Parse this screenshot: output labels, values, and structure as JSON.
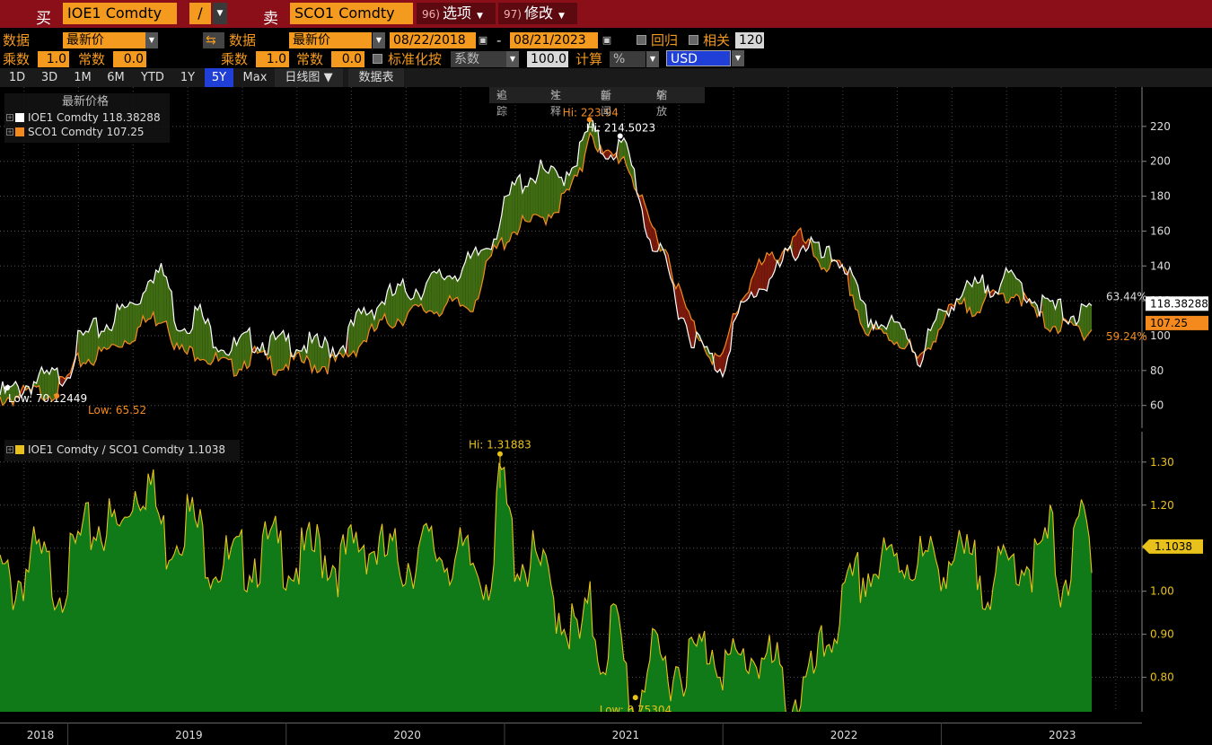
{
  "titlebar": {
    "buy_label": "买",
    "buy_ticker": "IOE1 Comdty",
    "operator": "/",
    "sell_label": "卖",
    "sell_ticker": "SCO1 Comdty",
    "options_num": "96)",
    "options_label": "选项",
    "edit_num": "97)",
    "edit_label": "修改"
  },
  "params": {
    "data_label": "数据",
    "data_value": "最新价",
    "data2_label": "数据",
    "data2_value": "最新价",
    "start_date": "08/22/2018",
    "date_sep": "-",
    "end_date": "08/21/2023",
    "regress_label": "回归",
    "corr_label": "相关",
    "corr_value": "120",
    "mult_label": "乘数",
    "mult_value": "1.0",
    "const_label": "常数",
    "const_value": "0.0",
    "mult2_label": "乘数",
    "mult2_value": "1.0",
    "const2_label": "常数",
    "const2_value": "0.0",
    "normalize_label": "标准化按",
    "normalize_value": "系数",
    "normalize_num": "100.0",
    "calc_label": "计算",
    "calc_value": "%",
    "currency": "USD"
  },
  "tabs": [
    "1D",
    "3D",
    "1M",
    "6M",
    "YTD",
    "1Y",
    "5Y",
    "Max"
  ],
  "active_tab": "5Y",
  "chart_type_label": "日线图",
  "table_label": "数据表",
  "chart_tools": {
    "track": "追踪",
    "annotate": "注释",
    "news": "新闻",
    "zoom": "缩放"
  },
  "colors": {
    "titlebar": "#8a0f19",
    "accent_orange": "#f49a1e",
    "active_tab": "#1f3fd6",
    "series1": "#ffffff",
    "series2": "#f48a1e",
    "fill_above": "#3f6b12",
    "fill_below": "#7a1a0c",
    "ratio_fill": "#0f7a17",
    "ratio_line": "#e8c21a"
  },
  "chart_data": [
    {
      "type": "line",
      "legend_title": "最新价格",
      "series": [
        {
          "name": "IOE1 Comdty",
          "last": "118.38288",
          "pct": "63.44%",
          "color": "#ffffff",
          "hi_label": "Hi: 214.5023",
          "low_label": "Low: 70.12449",
          "points": [
            [
              2018.64,
              70
            ],
            [
              2018.7,
              72
            ],
            [
              2018.8,
              78
            ],
            [
              2018.9,
              80
            ],
            [
              2018.95,
              84
            ],
            [
              2019.0,
              100
            ],
            [
              2019.05,
              105
            ],
            [
              2019.1,
              108
            ],
            [
              2019.2,
              118
            ],
            [
              2019.25,
              122
            ],
            [
              2019.3,
              130
            ],
            [
              2019.32,
              142
            ],
            [
              2019.4,
              138
            ],
            [
              2019.45,
              112
            ],
            [
              2019.5,
              112
            ],
            [
              2019.55,
              118
            ],
            [
              2019.6,
              106
            ],
            [
              2019.7,
              96
            ],
            [
              2019.8,
              102
            ],
            [
              2019.9,
              99
            ],
            [
              2020.0,
              100
            ],
            [
              2020.1,
              97
            ],
            [
              2020.2,
              98
            ],
            [
              2020.3,
              116
            ],
            [
              2020.4,
              125
            ],
            [
              2020.5,
              130
            ],
            [
              2020.6,
              133
            ],
            [
              2020.7,
              140
            ],
            [
              2020.8,
              145
            ],
            [
              2020.9,
              162
            ],
            [
              2021.0,
              190
            ],
            [
              2021.1,
              198
            ],
            [
              2021.2,
              193
            ],
            [
              2021.3,
              210
            ],
            [
              2021.34,
              224
            ],
            [
              2021.4,
              210
            ],
            [
              2021.5,
              212
            ],
            [
              2021.55,
              195
            ],
            [
              2021.6,
              165
            ],
            [
              2021.7,
              140
            ],
            [
              2021.75,
              120
            ],
            [
              2021.8,
              106
            ],
            [
              2021.9,
              90
            ],
            [
              2021.95,
              85
            ],
            [
              2022.0,
              110
            ],
            [
              2022.1,
              130
            ],
            [
              2022.2,
              140
            ],
            [
              2022.25,
              150
            ],
            [
              2022.3,
              155
            ],
            [
              2022.35,
              158
            ],
            [
              2022.4,
              148
            ],
            [
              2022.5,
              148
            ],
            [
              2022.55,
              132
            ],
            [
              2022.6,
              115
            ],
            [
              2022.7,
              110
            ],
            [
              2022.8,
              105
            ],
            [
              2022.85,
              90
            ],
            [
              2022.9,
              105
            ],
            [
              2023.0,
              125
            ],
            [
              2023.1,
              130
            ],
            [
              2023.2,
              135
            ],
            [
              2023.3,
              135
            ],
            [
              2023.4,
              122
            ],
            [
              2023.5,
              118
            ],
            [
              2023.6,
              115
            ],
            [
              2023.64,
              118.38
            ]
          ]
        },
        {
          "name": "SCO1 Comdty",
          "last": "107.25",
          "pct": "59.24%",
          "color": "#f48a1e",
          "hi_label": "Hi: 223.94",
          "low_label": "Low: 65.52",
          "points": [
            [
              2018.64,
              67
            ],
            [
              2018.7,
              68
            ],
            [
              2018.8,
              70
            ],
            [
              2018.9,
              72
            ],
            [
              2018.95,
              78
            ],
            [
              2019.0,
              88
            ],
            [
              2019.05,
              90
            ],
            [
              2019.1,
              92
            ],
            [
              2019.2,
              100
            ],
            [
              2019.25,
              104
            ],
            [
              2019.3,
              110
            ],
            [
              2019.32,
              112
            ],
            [
              2019.4,
              115
            ],
            [
              2019.45,
              95
            ],
            [
              2019.5,
              92
            ],
            [
              2019.55,
              95
            ],
            [
              2019.6,
              90
            ],
            [
              2019.7,
              84
            ],
            [
              2019.8,
              92
            ],
            [
              2019.9,
              86
            ],
            [
              2020.0,
              88
            ],
            [
              2020.1,
              86
            ],
            [
              2020.2,
              88
            ],
            [
              2020.3,
              100
            ],
            [
              2020.4,
              110
            ],
            [
              2020.5,
              115
            ],
            [
              2020.6,
              118
            ],
            [
              2020.7,
              120
            ],
            [
              2020.8,
              120
            ],
            [
              2020.9,
              150
            ],
            [
              2021.0,
              165
            ],
            [
              2021.1,
              168
            ],
            [
              2021.2,
              178
            ],
            [
              2021.3,
              195
            ],
            [
              2021.34,
              223.9
            ],
            [
              2021.4,
              205
            ],
            [
              2021.5,
              206
            ],
            [
              2021.55,
              190
            ],
            [
              2021.6,
              170
            ],
            [
              2021.7,
              150
            ],
            [
              2021.75,
              128
            ],
            [
              2021.8,
              112
            ],
            [
              2021.9,
              92
            ],
            [
              2021.95,
              88
            ],
            [
              2022.0,
              115
            ],
            [
              2022.1,
              140
            ],
            [
              2022.2,
              150
            ],
            [
              2022.25,
              155
            ],
            [
              2022.3,
              160
            ],
            [
              2022.35,
              152
            ],
            [
              2022.4,
              145
            ],
            [
              2022.5,
              140
            ],
            [
              2022.55,
              125
            ],
            [
              2022.6,
              105
            ],
            [
              2022.7,
              103
            ],
            [
              2022.8,
              98
            ],
            [
              2022.85,
              86
            ],
            [
              2022.9,
              100
            ],
            [
              2023.0,
              118
            ],
            [
              2023.1,
              120
            ],
            [
              2023.2,
              125
            ],
            [
              2023.3,
              128
            ],
            [
              2023.4,
              112
            ],
            [
              2023.5,
              108
            ],
            [
              2023.6,
              106
            ],
            [
              2023.64,
              107.25
            ]
          ]
        }
      ],
      "yticks": [
        60,
        80,
        100,
        120,
        140,
        160,
        180,
        200,
        220
      ],
      "ylim": [
        48,
        240
      ]
    },
    {
      "type": "area",
      "series": [
        {
          "name": "IOE1 Comdty / SCO1 Comdty",
          "last": "1.1038",
          "hi_label": "Hi: 1.31883",
          "low_label": "Low: 0.75304",
          "points": [
            [
              2018.64,
              1.08
            ],
            [
              2018.7,
              1.05
            ],
            [
              2018.8,
              1.12
            ],
            [
              2018.9,
              1.06
            ],
            [
              2018.95,
              1.08
            ],
            [
              2019.0,
              1.15
            ],
            [
              2019.1,
              1.2
            ],
            [
              2019.2,
              1.18
            ],
            [
              2019.25,
              1.28
            ],
            [
              2019.32,
              1.3
            ],
            [
              2019.4,
              1.15
            ],
            [
              2019.5,
              1.22
            ],
            [
              2019.55,
              1.18
            ],
            [
              2019.6,
              1.12
            ],
            [
              2019.7,
              1.1
            ],
            [
              2019.8,
              1.12
            ],
            [
              2019.9,
              1.14
            ],
            [
              2020.0,
              1.1
            ],
            [
              2020.1,
              1.14
            ],
            [
              2020.2,
              1.1
            ],
            [
              2020.3,
              1.16
            ],
            [
              2020.4,
              1.12
            ],
            [
              2020.5,
              1.11
            ],
            [
              2020.6,
              1.14
            ],
            [
              2020.7,
              1.12
            ],
            [
              2020.8,
              1.1
            ],
            [
              2020.9,
              1.08
            ],
            [
              2020.93,
              1.32
            ],
            [
              2021.0,
              1.12
            ],
            [
              2021.1,
              1.1
            ],
            [
              2021.2,
              1.0
            ],
            [
              2021.3,
              0.92
            ],
            [
              2021.34,
              1.0
            ],
            [
              2021.4,
              0.88
            ],
            [
              2021.45,
              0.98
            ],
            [
              2021.55,
              0.75
            ],
            [
              2021.6,
              0.88
            ],
            [
              2021.7,
              0.86
            ],
            [
              2021.8,
              0.88
            ],
            [
              2021.9,
              0.92
            ],
            [
              2021.95,
              0.88
            ],
            [
              2022.0,
              0.86
            ],
            [
              2022.1,
              0.9
            ],
            [
              2022.2,
              0.85
            ],
            [
              2022.25,
              0.78
            ],
            [
              2022.35,
              0.82
            ],
            [
              2022.45,
              0.95
            ],
            [
              2022.5,
              1.0
            ],
            [
              2022.55,
              1.05
            ],
            [
              2022.6,
              1.08
            ],
            [
              2022.7,
              1.1
            ],
            [
              2022.8,
              1.12
            ],
            [
              2022.9,
              1.1
            ],
            [
              2023.0,
              1.12
            ],
            [
              2023.1,
              1.09
            ],
            [
              2023.2,
              1.06
            ],
            [
              2023.3,
              1.12
            ],
            [
              2023.4,
              1.1
            ],
            [
              2023.45,
              1.18
            ],
            [
              2023.5,
              1.06
            ],
            [
              2023.55,
              1.1
            ],
            [
              2023.6,
              1.22
            ],
            [
              2023.64,
              1.1038
            ]
          ]
        }
      ],
      "yticks": [
        "0.80",
        "0.90",
        "1.00",
        "1.10",
        "1.20",
        "1.30"
      ],
      "ylim": [
        0.72,
        1.36
      ]
    }
  ],
  "x_axis": {
    "xlim": [
      2018.64,
      2023.87
    ],
    "labels": [
      "2018",
      "2019",
      "2020",
      "2021",
      "2022",
      "2023"
    ]
  }
}
